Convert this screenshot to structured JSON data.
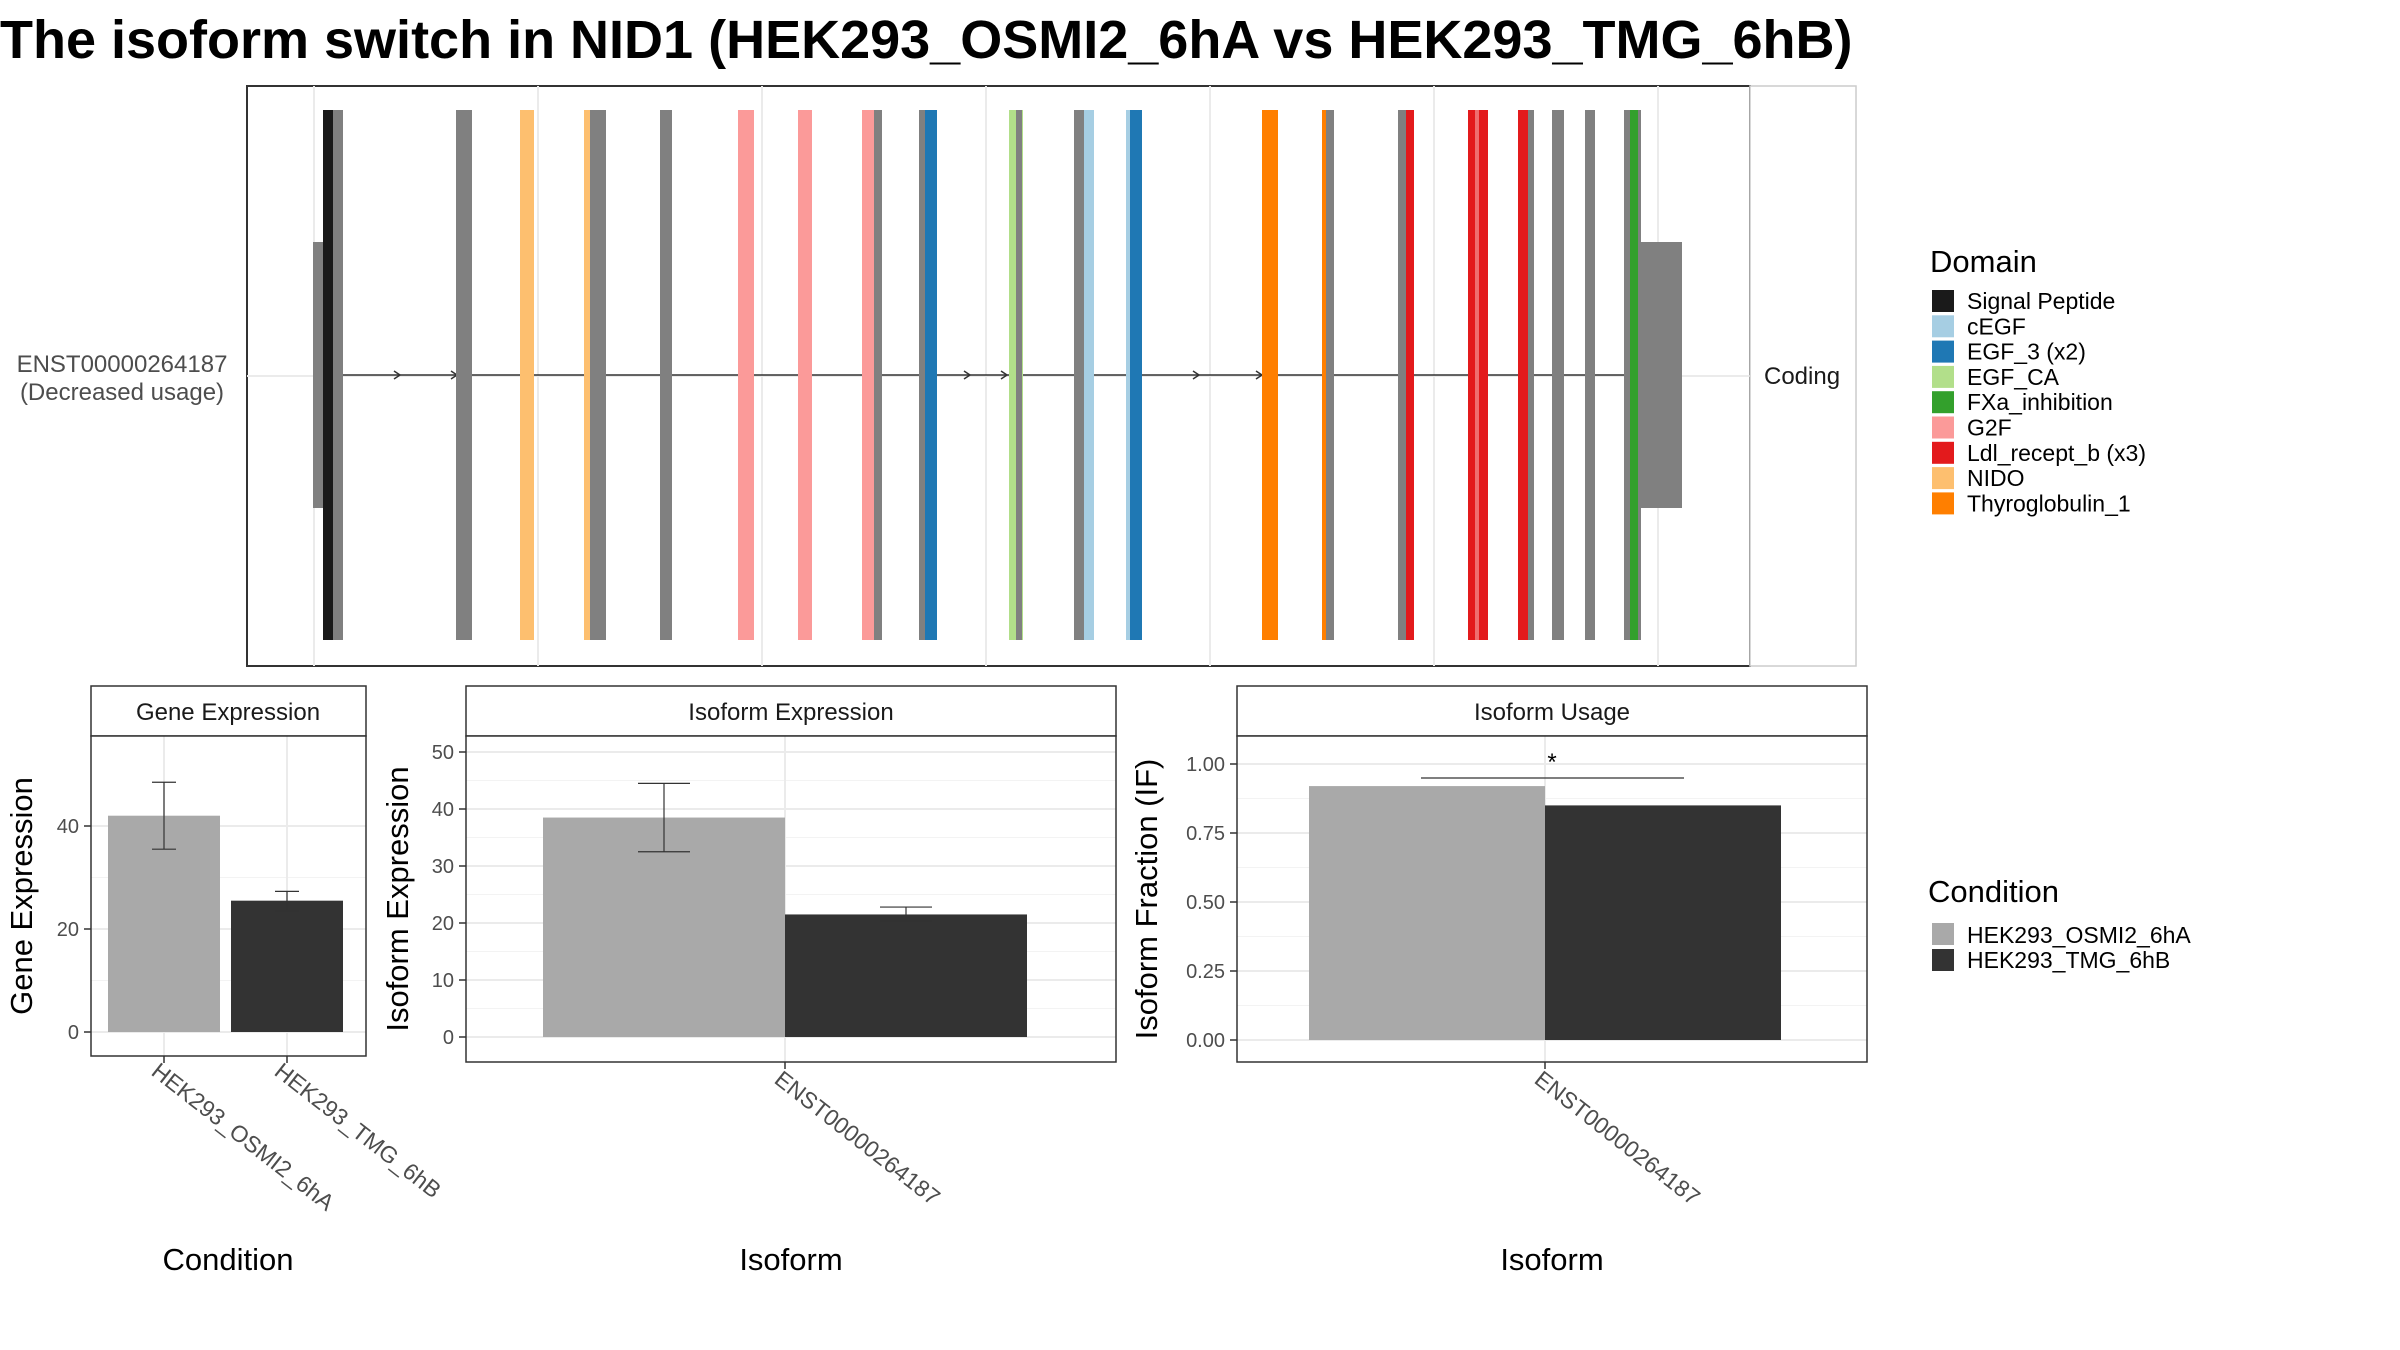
{
  "title": "The isoform switch in NID1 (HEK293_OSMI2_6hA vs HEK293_TMG_6hB)",
  "colors": {
    "cond_a": "#a9a9a9",
    "cond_b": "#333333",
    "exon": "#808080"
  },
  "structure": {
    "isoform_label": "ENST00000264187",
    "isoform_sub": "(Decreased usage)",
    "side_label": "Coding",
    "domain_legend_title": "Domain",
    "domains": [
      {
        "name": "Signal Peptide",
        "color": "#1a1a1a"
      },
      {
        "name": "cEGF",
        "color": "#a6cee3"
      },
      {
        "name": "EGF_3 (x2)",
        "color": "#1f78b4"
      },
      {
        "name": "EGF_CA",
        "color": "#b2df8a"
      },
      {
        "name": "FXa_inhibition",
        "color": "#33a02c"
      },
      {
        "name": "G2F",
        "color": "#fb9a99"
      },
      {
        "name": "Ldl_recept_b (x3)",
        "color": "#e31a1c"
      },
      {
        "name": "NIDO",
        "color": "#fdbf6f"
      },
      {
        "name": "Thyroglobulin_1",
        "color": "#ff7f00"
      }
    ]
  },
  "chart_data": [
    {
      "type": "bar",
      "panel": "Gene Expression",
      "categories": [
        "HEK293_OSMI2_6hA",
        "HEK293_TMG_6hB"
      ],
      "values": [
        42,
        25.5
      ],
      "errors": [
        [
          35.5,
          48.5
        ],
        [
          23.5,
          27.3
        ]
      ],
      "xlabel": "Condition",
      "ylabel": "Gene Expression",
      "ylim": [
        0,
        58
      ],
      "yticks": [
        0,
        20,
        40
      ]
    },
    {
      "type": "bar",
      "panel": "Isoform Expression",
      "categories": [
        "ENST00000264187"
      ],
      "series": [
        {
          "name": "HEK293_OSMI2_6hA",
          "values": [
            38.5
          ],
          "error": [
            32.5,
            44.5
          ]
        },
        {
          "name": "HEK293_TMG_6hB",
          "values": [
            21.5
          ],
          "error": [
            20.3,
            22.8
          ]
        }
      ],
      "xlabel": "Isoform",
      "ylabel": "Isoform Expression",
      "ylim": [
        0,
        54
      ],
      "yticks": [
        0,
        10,
        20,
        30,
        40,
        50
      ]
    },
    {
      "type": "bar",
      "panel": "Isoform Usage",
      "categories": [
        "ENST00000264187"
      ],
      "series": [
        {
          "name": "HEK293_OSMI2_6hA",
          "values": [
            0.92
          ]
        },
        {
          "name": "HEK293_TMG_6hB",
          "values": [
            0.85
          ]
        }
      ],
      "annotation": "*",
      "xlabel": "Isoform",
      "ylabel": "Isoform Fraction (IF)",
      "ylim": [
        0,
        1.2
      ],
      "yticks": [
        "0.00",
        "0.25",
        "0.50",
        "0.75",
        "1.00"
      ]
    }
  ],
  "condition_legend": {
    "title": "Condition",
    "items": [
      "HEK293_OSMI2_6hA",
      "HEK293_TMG_6hB"
    ]
  }
}
